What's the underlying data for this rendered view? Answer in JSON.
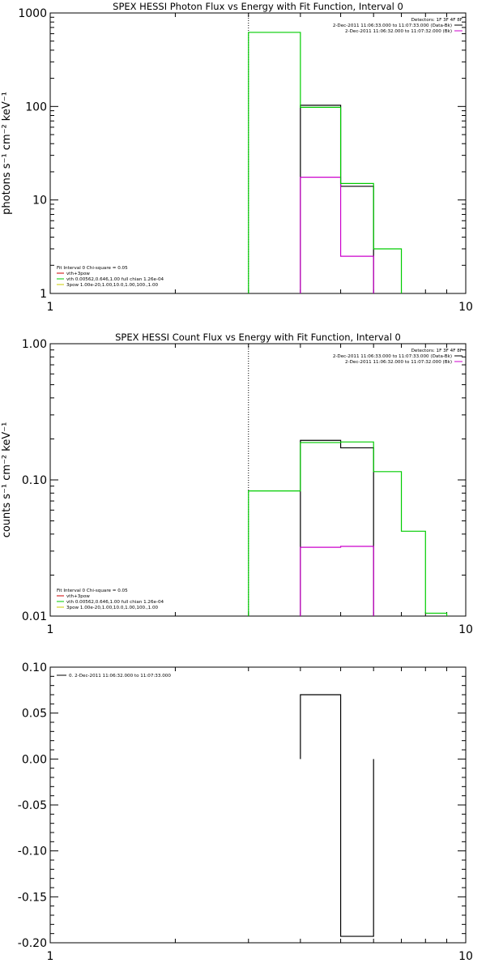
{
  "chart_data": [
    {
      "type": "step",
      "title": "SPEX HESSI Photon Flux vs Energy with Fit Function, Interval 0",
      "ylabel": "photons s⁻¹ cm⁻² keV⁻¹",
      "xscale": "log",
      "yscale": "log",
      "xlim": [
        1,
        10
      ],
      "ylim": [
        1,
        1000
      ],
      "xticks": [
        "1",
        "10"
      ],
      "yticks": [
        "1",
        "10",
        "100",
        "1000"
      ],
      "vline_x": 3.0,
      "legend_position": "top-right",
      "legend": {
        "header": "Detectors: 1F 3F 4F 8F",
        "entries": [
          {
            "label": "2-Dec-2011 11:06:33.000 to 11:07:33.000 (Data-Bk)",
            "color": "#000000"
          },
          {
            "label": "2-Dec-2011 11:06:32.000 to 11:07:32.000 (Bk)",
            "color": "#cc00cc"
          }
        ]
      },
      "fit_notes": {
        "header": "Fit Interval  0    Chi-square = 0.05",
        "lines": [
          {
            "text": "vth+3pow",
            "color": "#cc0000"
          },
          {
            "text": "vth 0.00562,0.646,1.00   full chian 1.26e-04",
            "color": "#00cc00"
          },
          {
            "text": "3pow 1.00e-20,1.00,10.0,1.00,100.,1.00",
            "color": "#cccc00"
          }
        ]
      },
      "series": [
        {
          "name": "Data-Bk",
          "color": "#000000",
          "edges": [
            4,
            5,
            6
          ],
          "values": [
            103,
            14
          ]
        },
        {
          "name": "Bk",
          "color": "#cc00cc",
          "edges": [
            4,
            5,
            6
          ],
          "values": [
            17.5,
            2.5
          ]
        },
        {
          "name": "vth",
          "color": "#00cc00",
          "edges": [
            3,
            4,
            5,
            6,
            7
          ],
          "values": [
            620,
            98,
            15,
            3.0
          ]
        }
      ]
    },
    {
      "type": "step",
      "title": "SPEX HESSI Count Flux vs Energy with Fit Function, Interval 0",
      "ylabel": "counts s⁻¹ cm⁻² keV⁻¹",
      "xscale": "log",
      "yscale": "log",
      "xlim": [
        1,
        10
      ],
      "ylim": [
        0.01,
        1
      ],
      "xticks": [
        "1",
        "10"
      ],
      "yticks": [
        "0.01",
        "0.10",
        "1.00"
      ],
      "vline_x": 3.0,
      "legend_position": "top-right",
      "legend": {
        "header": "Detectors: 1F 3F 4F 8F",
        "entries": [
          {
            "label": "2-Dec-2011 11:06:33.000 to 11:07:33.000 (Data-Bk)",
            "color": "#000000"
          },
          {
            "label": "2-Dec-2011 11:06:32.000 to 11:07:32.000 (Bk)",
            "color": "#cc00cc"
          }
        ]
      },
      "fit_notes": {
        "header": "Fit Interval  0    Chi-square = 0.05",
        "lines": [
          {
            "text": "vth+3pow",
            "color": "#cc0000"
          },
          {
            "text": "vth 0.00562,0.646,1.00   full chian 1.26e-04",
            "color": "#00cc00"
          },
          {
            "text": "3pow 1.00e-20,1.00,10.0,1.00,100.,1.00",
            "color": "#cccc00"
          }
        ]
      },
      "series": [
        {
          "name": "Data-Bk",
          "color": "#000000",
          "edges": [
            4,
            5,
            6
          ],
          "values": [
            0.195,
            0.172
          ]
        },
        {
          "name": "Bk",
          "color": "#cc00cc",
          "edges": [
            4,
            5,
            6
          ],
          "values": [
            0.032,
            0.0325
          ]
        },
        {
          "name": "vth",
          "color": "#00cc00",
          "edges": [
            3,
            4,
            5,
            6,
            7,
            8,
            9
          ],
          "values": [
            0.083,
            0.188,
            0.19,
            0.115,
            0.042,
            0.0105
          ]
        }
      ]
    },
    {
      "type": "step",
      "title": "",
      "ylabel": "",
      "xscale": "log",
      "yscale": "linear",
      "xlim": [
        1,
        10
      ],
      "ylim": [
        -0.2,
        0.1
      ],
      "xticks": [
        "1",
        "10"
      ],
      "yticks": [
        "0.10",
        "0.05",
        "0.00",
        "-0.05",
        "-0.10",
        "-0.15",
        "-0.20"
      ],
      "legend_position": "top-left",
      "legend": {
        "header": "",
        "entries": [
          {
            "label": "0.  2-Dec-2011 11:06:32.000 to 11:07:33.000",
            "color": "#000000"
          }
        ]
      },
      "series": [
        {
          "name": "",
          "color": "#000000",
          "edges": [
            4,
            5,
            6
          ],
          "values": [
            0.07,
            -0.193
          ]
        }
      ]
    }
  ]
}
